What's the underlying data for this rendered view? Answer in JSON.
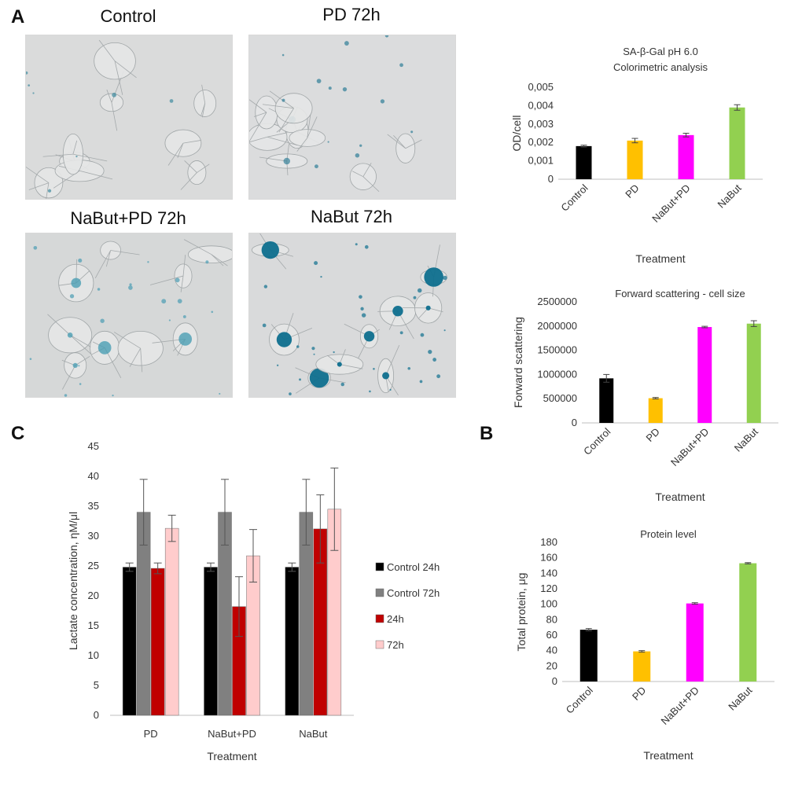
{
  "panel_labels": {
    "a": "A",
    "b": "B",
    "c": "C"
  },
  "micrographs": [
    {
      "label": "Control",
      "bg": "#dadbdb",
      "stain": "#3f8ba0",
      "blobs": 0.05
    },
    {
      "label": "PD 72h",
      "bg": "#dbdcdd",
      "stain": "#2f7e97",
      "blobs": 0.3
    },
    {
      "label": "NaBut+PD 72h",
      "bg": "#d6d8d8",
      "stain": "#4a9db3",
      "blobs": 0.6
    },
    {
      "label": "NaBut 72h",
      "bg": "#d9dadb",
      "stain": "#0e6f8e",
      "blobs": 1.0
    }
  ],
  "chart_data": [
    {
      "id": "sa_beta_gal",
      "type": "bar",
      "title": "SA-β-Gal pH 6.0",
      "subtitle": "Colorimetric analysis",
      "xlabel": "Treatment",
      "ylabel": "OD/cell",
      "categories": [
        "Control",
        "PD",
        "NaBut+PD",
        "NaBut"
      ],
      "values": [
        0.0018,
        0.0021,
        0.0024,
        0.0039
      ],
      "errors": [
        5e-05,
        0.00012,
        0.0001,
        0.00015
      ],
      "colors": [
        "#000000",
        "#ffc000",
        "#ff00ff",
        "#92d050"
      ],
      "ylim": [
        0,
        0.005
      ],
      "yticks": [
        0,
        0.001,
        0.002,
        0.003,
        0.004,
        0.005
      ],
      "ytick_labels": [
        "0",
        "0,001",
        "0,002",
        "0,003",
        "0,004",
        "0,005"
      ],
      "grid": false
    },
    {
      "id": "forward_scatter",
      "type": "bar",
      "title": "Forward scattering - cell size",
      "xlabel": "Treatment",
      "ylabel": "Forward scattering",
      "categories": [
        "Control",
        "PD",
        "NaBut+PD",
        "NaBut"
      ],
      "values": [
        920000,
        510000,
        1980000,
        2050000
      ],
      "errors": [
        80000,
        15000,
        15000,
        60000
      ],
      "colors": [
        "#000000",
        "#ffc000",
        "#ff00ff",
        "#92d050"
      ],
      "ylim": [
        0,
        2500000
      ],
      "yticks": [
        0,
        500000,
        1000000,
        1500000,
        2000000,
        2500000
      ],
      "ytick_labels": [
        "0",
        "500000",
        "1000000",
        "1500000",
        "2000000",
        "2500000"
      ],
      "grid": false
    },
    {
      "id": "protein_level",
      "type": "bar",
      "title": "Protein level",
      "xlabel": "Treatment",
      "ylabel": "Total protein, μg",
      "categories": [
        "Control",
        "PD",
        "NaBut+PD",
        "NaBut"
      ],
      "values": [
        67,
        39,
        101,
        153
      ],
      "errors": [
        1.5,
        1,
        1,
        0.8
      ],
      "colors": [
        "#000000",
        "#ffc000",
        "#ff00ff",
        "#92d050"
      ],
      "ylim": [
        0,
        180
      ],
      "yticks": [
        0,
        20,
        40,
        60,
        80,
        100,
        120,
        140,
        160,
        180
      ],
      "ytick_labels": [
        "0",
        "20",
        "40",
        "60",
        "80",
        "100",
        "120",
        "140",
        "160",
        "180"
      ],
      "grid": false
    },
    {
      "id": "lactate",
      "type": "bar",
      "title": "",
      "xlabel": "Treatment",
      "ylabel": "Lactate concentration, ηM/μl",
      "categories": [
        "PD",
        "NaBut+PD",
        "NaBut"
      ],
      "series": [
        {
          "name": "Control 24h",
          "color": "#000000",
          "values": [
            24.8,
            24.8,
            24.8
          ],
          "errors": [
            0.7,
            0.7,
            0.7
          ]
        },
        {
          "name": "Control 72h",
          "color": "#808080",
          "values": [
            34.0,
            34.0,
            34.0
          ],
          "errors": [
            5.5,
            5.5,
            5.5
          ]
        },
        {
          "name": "24h",
          "color": "#c00000",
          "values": [
            24.6,
            18.2,
            31.2
          ],
          "errors": [
            0.9,
            5.0,
            5.7
          ]
        },
        {
          "name": "72h",
          "color": "#ffcccc",
          "values": [
            31.3,
            26.7,
            34.5
          ],
          "errors": [
            2.2,
            4.4,
            6.9
          ]
        }
      ],
      "ylim": [
        0,
        45
      ],
      "yticks": [
        0,
        5,
        10,
        15,
        20,
        25,
        30,
        35,
        40,
        45
      ],
      "ytick_labels": [
        "0",
        "5",
        "10",
        "15",
        "20",
        "25",
        "30",
        "35",
        "40",
        "45"
      ],
      "legend": "right",
      "grid": false
    }
  ]
}
